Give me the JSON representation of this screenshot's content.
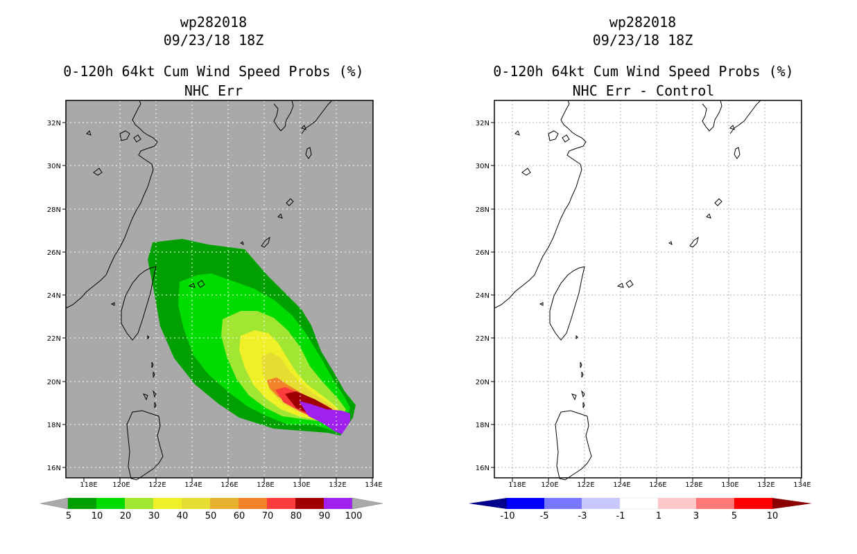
{
  "left_panel": {
    "title_line1": "wp282018",
    "title_line2": "09/23/18 18Z",
    "title_line3": "0-120h 64kt Cum Wind Speed Probs (%)",
    "title_line4": "NHC Err",
    "background_color": "#a9a9a9",
    "colorbar": {
      "labels": [
        "5",
        "10",
        "20",
        "30",
        "40",
        "50",
        "60",
        "70",
        "80",
        "90",
        "100"
      ],
      "colors": [
        "#00a000",
        "#00dc00",
        "#a0e632",
        "#f0f028",
        "#e6dc32",
        "#e6af2d",
        "#f08228",
        "#fa3c3c",
        "#a00000",
        "#a020f0"
      ]
    }
  },
  "right_panel": {
    "title_line1": "wp282018",
    "title_line2": "09/23/18 18Z",
    "title_line3": "0-120h 64kt Cum Wind Speed Probs (%)",
    "title_line4": "NHC Err - Control",
    "colorbar": {
      "labels": [
        "-10",
        "-5",
        "-3",
        "-1",
        "1",
        "3",
        "5",
        "10"
      ],
      "colors": [
        "#0000c8",
        "#0000ff",
        "#7878ff",
        "#c8c8ff",
        "#ffffff",
        "#ffc8c8",
        "#ff7878",
        "#ff0000",
        "#ff0000"
      ]
    }
  },
  "axes": {
    "x_ticks": [
      "118E",
      "120E",
      "122E",
      "124E",
      "126E",
      "128E",
      "130E",
      "132E",
      "134E"
    ],
    "y_ticks": [
      "32N",
      "30N",
      "28N",
      "26N",
      "24N",
      "22N",
      "20N",
      "18N",
      "16N"
    ]
  }
}
